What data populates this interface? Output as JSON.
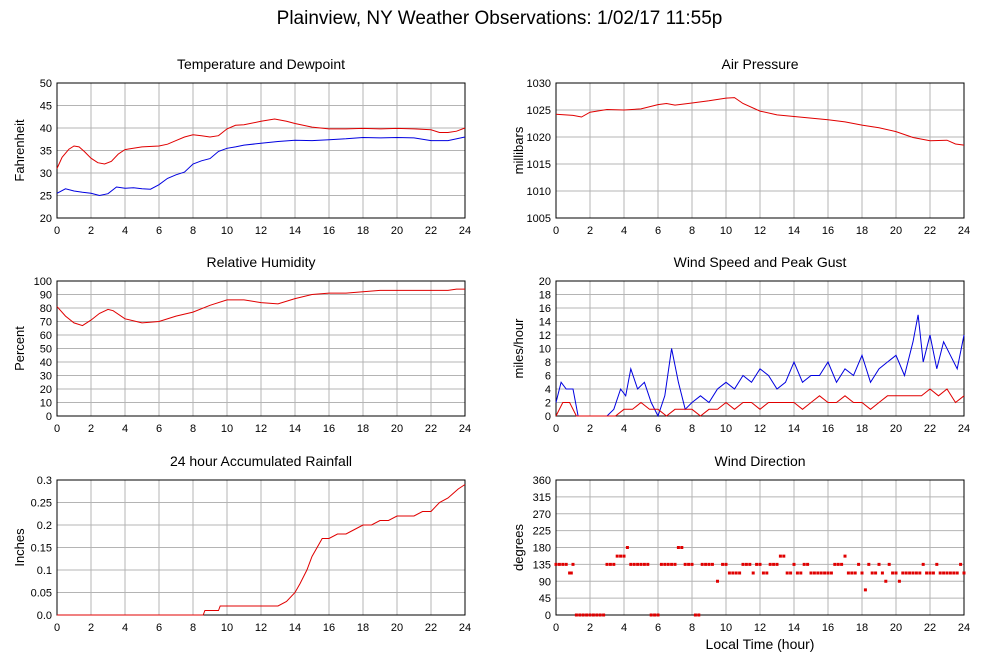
{
  "page": {
    "title": "Plainview, NY Weather Observations: 1/02/17 11:55p",
    "xlabel_shared": "Local Time (hour)"
  },
  "colors": {
    "red": "#e00000",
    "blue": "#0000e0",
    "grid": "#b4b4b4",
    "axis": "#000000"
  },
  "chart_data": [
    {
      "id": "temp",
      "type": "line",
      "title": "Temperature and Dewpoint",
      "xlabel": "",
      "ylabel": "Fahrenheit",
      "xlim": [
        0,
        24
      ],
      "ylim": [
        20,
        50
      ],
      "xticks": [
        "0",
        "2",
        "4",
        "6",
        "8",
        "10",
        "12",
        "14",
        "16",
        "18",
        "20",
        "22",
        "24"
      ],
      "yticks": [
        "20",
        "25",
        "30",
        "35",
        "40",
        "45",
        "50"
      ],
      "grid": true,
      "series": [
        {
          "color": "#e00000",
          "x": [
            0,
            0.3,
            0.7,
            1,
            1.3,
            1.6,
            2,
            2.4,
            2.8,
            3.2,
            3.6,
            4,
            5,
            6,
            6.5,
            7,
            7.5,
            8,
            8.5,
            9,
            9.5,
            10,
            10.5,
            11,
            12,
            12.8,
            13.5,
            14,
            15,
            16,
            17,
            18,
            19,
            20,
            21,
            22,
            22.5,
            23,
            23.5,
            24
          ],
          "y": [
            31,
            33.5,
            35.3,
            36,
            35.8,
            34.8,
            33.3,
            32.3,
            32,
            32.6,
            34.2,
            35.2,
            35.8,
            36,
            36.4,
            37.2,
            38,
            38.5,
            38.3,
            38,
            38.3,
            39.8,
            40.6,
            40.7,
            41.5,
            42,
            41.5,
            41,
            40.2,
            39.8,
            39.8,
            39.9,
            39.8,
            39.9,
            39.8,
            39.6,
            39,
            39,
            39.3,
            40
          ]
        },
        {
          "color": "#0000e0",
          "x": [
            0,
            0.5,
            1,
            1.5,
            2,
            2.5,
            3,
            3.5,
            4,
            4.5,
            5,
            5.5,
            6,
            6.5,
            7,
            7.5,
            8,
            8.5,
            9,
            9.5,
            10,
            10.5,
            11,
            12,
            13,
            14,
            15,
            16,
            17,
            18,
            19,
            20,
            21,
            22,
            23,
            24
          ],
          "y": [
            25.5,
            26.5,
            26,
            25.7,
            25.5,
            25,
            25.4,
            26.9,
            26.6,
            26.7,
            26.5,
            26.4,
            27.4,
            28.8,
            29.6,
            30.2,
            32,
            32.7,
            33.2,
            34.8,
            35.5,
            35.8,
            36.2,
            36.6,
            37,
            37.3,
            37.2,
            37.4,
            37.6,
            37.9,
            37.8,
            37.9,
            37.8,
            37.2,
            37.2,
            38
          ]
        }
      ]
    },
    {
      "id": "pressure",
      "type": "line",
      "title": "Air Pressure",
      "xlabel": "",
      "ylabel": "millibars",
      "xlim": [
        0,
        24
      ],
      "ylim": [
        1005,
        1030
      ],
      "xticks": [
        "0",
        "2",
        "4",
        "6",
        "8",
        "10",
        "12",
        "14",
        "16",
        "18",
        "20",
        "22",
        "24"
      ],
      "yticks": [
        "1005",
        "1010",
        "1015",
        "1020",
        "1025",
        "1030"
      ],
      "grid": true,
      "series": [
        {
          "color": "#e00000",
          "x": [
            0,
            1,
            1.5,
            2,
            3,
            4,
            5,
            6,
            6.5,
            7,
            8,
            9,
            10,
            10.5,
            11,
            12,
            13,
            14,
            15,
            16,
            17,
            18,
            19,
            20,
            21,
            22,
            23,
            23.5,
            24
          ],
          "y": [
            1024.2,
            1024,
            1023.7,
            1024.6,
            1025.1,
            1025,
            1025.2,
            1026,
            1026.2,
            1025.9,
            1026.3,
            1026.7,
            1027.2,
            1027.3,
            1026.2,
            1024.8,
            1024.1,
            1023.8,
            1023.5,
            1023.2,
            1022.8,
            1022.2,
            1021.7,
            1021,
            1019.9,
            1019.3,
            1019.4,
            1018.7,
            1018.5
          ]
        }
      ]
    },
    {
      "id": "humidity",
      "type": "line",
      "title": "Relative Humidity",
      "xlabel": "",
      "ylabel": "Percent",
      "xlim": [
        0,
        24
      ],
      "ylim": [
        0,
        100
      ],
      "xticks": [
        "0",
        "2",
        "4",
        "6",
        "8",
        "10",
        "12",
        "14",
        "16",
        "18",
        "20",
        "22",
        "24"
      ],
      "yticks": [
        "0",
        "10",
        "20",
        "30",
        "40",
        "50",
        "60",
        "70",
        "80",
        "90",
        "100"
      ],
      "grid": true,
      "series": [
        {
          "color": "#e00000",
          "x": [
            0,
            0.5,
            1,
            1.5,
            2,
            2.5,
            3,
            3.3,
            4,
            5,
            6,
            7,
            8,
            9,
            10,
            11,
            12,
            13,
            14,
            15,
            16,
            17,
            18,
            19,
            20,
            21,
            22,
            23,
            23.5,
            24
          ],
          "y": [
            81,
            74,
            69,
            67,
            71,
            76,
            79,
            78,
            72,
            69,
            70,
            74,
            77,
            82,
            86,
            86,
            84,
            83,
            87,
            90,
            91,
            91,
            92,
            93,
            93,
            93,
            93,
            93,
            94,
            94
          ]
        }
      ]
    },
    {
      "id": "wind",
      "type": "line",
      "title": "Wind Speed and Peak Gust",
      "xlabel": "",
      "ylabel": "miles/hour",
      "xlim": [
        0,
        24
      ],
      "ylim": [
        0,
        20
      ],
      "xticks": [
        "0",
        "2",
        "4",
        "6",
        "8",
        "10",
        "12",
        "14",
        "16",
        "18",
        "20",
        "22",
        "24"
      ],
      "yticks": [
        "0",
        "2",
        "4",
        "6",
        "8",
        "10",
        "12",
        "14",
        "16",
        "18",
        "20"
      ],
      "grid": true,
      "series": [
        {
          "color": "#0000e0",
          "x": [
            0,
            0.3,
            0.6,
            1,
            1.3,
            1.6,
            2,
            3,
            3.4,
            3.8,
            4.1,
            4.4,
            4.8,
            5.2,
            5.6,
            6,
            6.4,
            6.8,
            7.2,
            7.6,
            8,
            8.5,
            9,
            9.5,
            10,
            10.5,
            11,
            11.5,
            12,
            12.5,
            13,
            13.5,
            14,
            14.5,
            15,
            15.5,
            16,
            16.5,
            17,
            17.5,
            18,
            18.5,
            19,
            19.5,
            20,
            20.5,
            21,
            21.3,
            21.6,
            22,
            22.4,
            22.8,
            23.2,
            23.6,
            24
          ],
          "y": [
            2,
            5,
            4,
            4,
            0,
            0,
            0,
            0,
            1,
            4,
            3,
            7,
            4,
            5,
            2,
            0,
            3,
            10,
            5,
            1,
            2,
            3,
            2,
            4,
            5,
            4,
            6,
            5,
            7,
            6,
            4,
            5,
            8,
            5,
            6,
            6,
            8,
            5,
            7,
            6,
            9,
            5,
            7,
            8,
            9,
            6,
            11,
            15,
            8,
            12,
            7,
            11,
            9,
            7,
            12
          ]
        },
        {
          "color": "#e00000",
          "x": [
            0,
            0.4,
            0.8,
            1.2,
            1.6,
            2,
            3,
            3.5,
            4,
            4.5,
            5,
            5.5,
            6,
            6.5,
            7,
            7.5,
            8,
            8.5,
            9,
            9.5,
            10,
            10.5,
            11,
            11.5,
            12,
            12.5,
            13,
            13.5,
            14,
            14.5,
            15,
            15.5,
            16,
            16.5,
            17,
            17.5,
            18,
            18.5,
            19,
            19.5,
            20,
            20.5,
            21,
            21.5,
            22,
            22.5,
            23,
            23.5,
            24
          ],
          "y": [
            0,
            2,
            2,
            0,
            0,
            0,
            0,
            0,
            1,
            1,
            2,
            1,
            1,
            0,
            1,
            1,
            1,
            0,
            1,
            1,
            2,
            1,
            2,
            2,
            1,
            2,
            2,
            2,
            2,
            1,
            2,
            3,
            2,
            2,
            3,
            2,
            2,
            1,
            2,
            3,
            3,
            3,
            3,
            3,
            4,
            3,
            4,
            2,
            3
          ]
        }
      ]
    },
    {
      "id": "rain",
      "type": "line",
      "title": "24 hour Accumulated Rainfall",
      "xlabel": "",
      "ylabel": "Inches",
      "xlim": [
        0,
        24
      ],
      "ylim": [
        0,
        0.3
      ],
      "xticks": [
        "0",
        "2",
        "4",
        "6",
        "8",
        "10",
        "12",
        "14",
        "16",
        "18",
        "20",
        "22",
        "24"
      ],
      "yticks": [
        "0.0",
        "0.05",
        "0.1",
        "0.15",
        "0.2",
        "0.25",
        "0.3"
      ],
      "grid": true,
      "series": [
        {
          "color": "#e00000",
          "x": [
            0,
            8.6,
            8.7,
            9.5,
            9.6,
            13,
            13.5,
            14,
            14.3,
            14.7,
            15,
            15.3,
            15.6,
            16,
            16.5,
            17,
            17.5,
            18,
            18.5,
            19,
            19.5,
            20,
            20.5,
            21,
            21.5,
            22,
            22.5,
            23,
            23.3,
            23.6,
            24
          ],
          "y": [
            0,
            0,
            0.01,
            0.01,
            0.02,
            0.02,
            0.03,
            0.05,
            0.07,
            0.1,
            0.13,
            0.15,
            0.17,
            0.17,
            0.18,
            0.18,
            0.19,
            0.2,
            0.2,
            0.21,
            0.21,
            0.22,
            0.22,
            0.22,
            0.23,
            0.23,
            0.25,
            0.26,
            0.27,
            0.28,
            0.29
          ]
        }
      ]
    },
    {
      "id": "direction",
      "type": "scatter",
      "title": "Wind Direction",
      "xlabel": "Local Time (hour)",
      "ylabel": "degrees",
      "xlim": [
        0,
        24
      ],
      "ylim": [
        0,
        360
      ],
      "xticks": [
        "0",
        "2",
        "4",
        "6",
        "8",
        "10",
        "12",
        "14",
        "16",
        "18",
        "20",
        "22",
        "24"
      ],
      "yticks": [
        "0",
        "45",
        "90",
        "135",
        "180",
        "225",
        "270",
        "315",
        "360"
      ],
      "grid": true,
      "series": [
        {
          "color": "#e00000",
          "x": [
            0,
            0.2,
            0.4,
            0.6,
            0.8,
            0.9,
            1.0,
            1.2,
            1.4,
            1.6,
            1.8,
            2.0,
            2.2,
            2.4,
            2.6,
            2.8,
            3.0,
            3.2,
            3.4,
            3.6,
            3.8,
            4.0,
            4.2,
            4.4,
            4.6,
            4.8,
            5.0,
            5.2,
            5.4,
            5.6,
            5.8,
            6.0,
            6.2,
            6.4,
            6.6,
            6.8,
            7.0,
            7.2,
            7.4,
            7.6,
            7.8,
            8.0,
            8.2,
            8.4,
            8.6,
            8.8,
            9.0,
            9.2,
            9.5,
            9.8,
            10.0,
            10.2,
            10.4,
            10.6,
            10.8,
            11.0,
            11.2,
            11.4,
            11.6,
            11.8,
            12.0,
            12.2,
            12.4,
            12.6,
            12.8,
            13.0,
            13.2,
            13.4,
            13.6,
            13.8,
            14.0,
            14.2,
            14.4,
            14.6,
            14.8,
            15.0,
            15.2,
            15.4,
            15.6,
            15.8,
            16.0,
            16.2,
            16.4,
            16.6,
            16.8,
            17.0,
            17.2,
            17.4,
            17.6,
            17.8,
            18.0,
            18.2,
            18.4,
            18.6,
            18.8,
            19.0,
            19.2,
            19.4,
            19.6,
            19.8,
            20.0,
            20.2,
            20.4,
            20.6,
            20.8,
            21.0,
            21.2,
            21.4,
            21.6,
            21.8,
            22.0,
            22.2,
            22.4,
            22.6,
            22.8,
            23.0,
            23.2,
            23.4,
            23.6,
            23.8,
            24.0
          ],
          "y": [
            135,
            135,
            135,
            135,
            112,
            112,
            135,
            0,
            0,
            0,
            0,
            0,
            0,
            0,
            0,
            0,
            135,
            135,
            135,
            157,
            157,
            157,
            180,
            135,
            135,
            135,
            135,
            135,
            135,
            0,
            0,
            0,
            135,
            135,
            135,
            135,
            135,
            180,
            180,
            135,
            135,
            135,
            0,
            0,
            135,
            135,
            135,
            135,
            90,
            135,
            135,
            112,
            112,
            112,
            112,
            135,
            135,
            135,
            112,
            135,
            135,
            112,
            112,
            135,
            135,
            135,
            157,
            157,
            112,
            112,
            135,
            112,
            112,
            135,
            135,
            112,
            112,
            112,
            112,
            112,
            112,
            112,
            135,
            135,
            135,
            157,
            112,
            112,
            112,
            135,
            112,
            67,
            135,
            112,
            112,
            135,
            112,
            90,
            135,
            112,
            112,
            90,
            112,
            112,
            112,
            112,
            112,
            112,
            135,
            112,
            112,
            112,
            135,
            112,
            112,
            112,
            112,
            112,
            112,
            135,
            112
          ]
        }
      ]
    }
  ]
}
